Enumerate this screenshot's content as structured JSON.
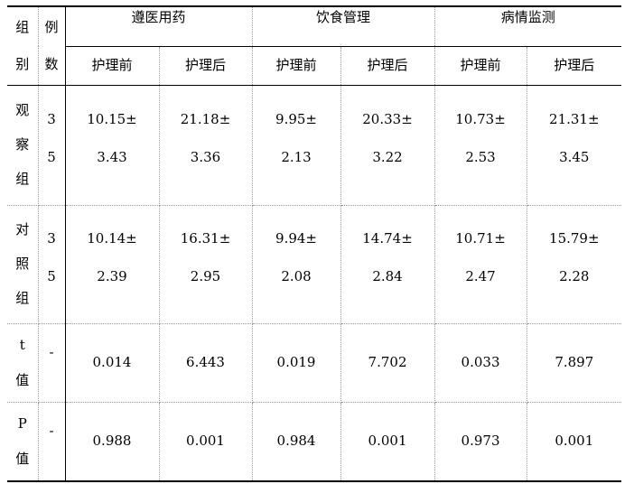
{
  "header": {
    "group_label_chars": [
      "组",
      "别"
    ],
    "count_label_chars": [
      "例",
      "数"
    ],
    "categories": [
      "遵医用药",
      "饮食管理",
      "病情监测"
    ],
    "sub_before": "护理前",
    "sub_after": "护理后"
  },
  "rows": [
    {
      "label_chars": [
        "观",
        "察",
        "组"
      ],
      "count_chars": [
        "3",
        "5"
      ],
      "cells": [
        [
          "10.15±",
          "3.43"
        ],
        [
          "21.18±",
          "3.36"
        ],
        [
          "9.95±",
          "2.13"
        ],
        [
          "20.33±",
          "3.22"
        ],
        [
          "10.73±",
          "2.53"
        ],
        [
          "21.31±",
          "3.45"
        ]
      ]
    },
    {
      "label_chars": [
        "对",
        "照",
        "组"
      ],
      "count_chars": [
        "3",
        "5"
      ],
      "cells": [
        [
          "10.14±",
          "2.39"
        ],
        [
          "16.31±",
          "2.95"
        ],
        [
          "9.94±",
          "2.08"
        ],
        [
          "14.74±",
          "2.84"
        ],
        [
          "10.71±",
          "2.47"
        ],
        [
          "15.79±",
          "2.28"
        ]
      ]
    },
    {
      "label_chars": [
        "t",
        "值"
      ],
      "count": "-",
      "values": [
        "0.014",
        "6.443",
        "0.019",
        "7.702",
        "0.033",
        "7.897"
      ]
    },
    {
      "label_chars": [
        "P",
        "值"
      ],
      "count": "-",
      "values": [
        "0.988",
        "0.001",
        "0.984",
        "0.001",
        "0.973",
        "0.001"
      ]
    }
  ]
}
